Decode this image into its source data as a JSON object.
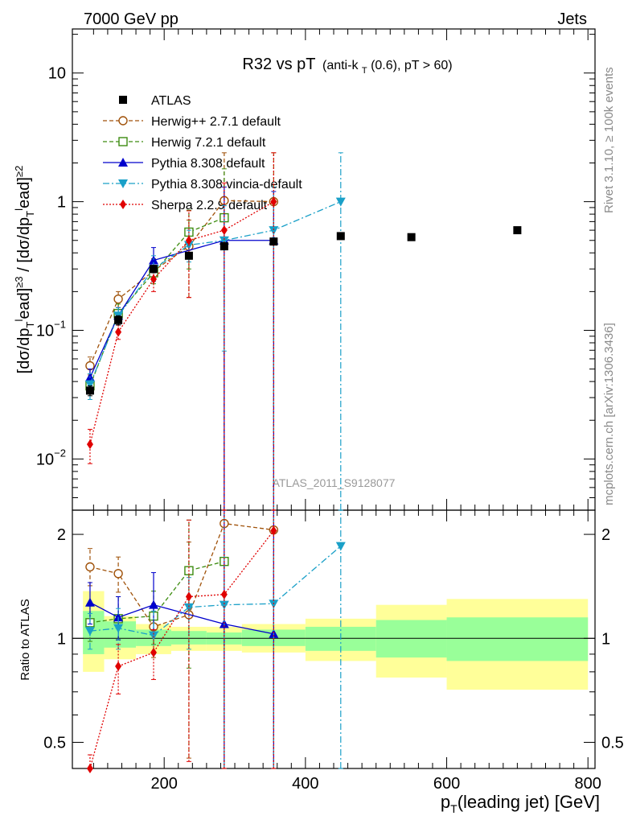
{
  "header": {
    "left": "7000 GeV pp",
    "right": "Jets"
  },
  "side_text": {
    "top": "Rivet 3.1.10, ≥ 100k events",
    "bottom": "mcplots.cern.ch [arXiv:1306.3436]"
  },
  "watermark": "ATLAS_2011_S9128077",
  "colors": {
    "atlas": "#000000",
    "herwigpp": "#a0520a",
    "herwig7": "#3d8c10",
    "pythia": "#0000cc",
    "vincia": "#1aa0c8",
    "sherpa": "#e00000",
    "band_yellow": "#ffff99",
    "band_green": "#99ff99"
  },
  "chart_data": [
    {
      "type": "line",
      "title": "R32 vs pT",
      "title_sub": "(anti-k",
      "title_sub_idx": "T",
      "title_sub_rest": "(0.6), pT > 60)",
      "xlim": [
        70,
        810
      ],
      "ylim": [
        0.004,
        22
      ],
      "ylog": true,
      "ylabel": "[dσ/dp",
      "yticks": [
        {
          "value": 0.01,
          "label": "10",
          "exp": "−2"
        },
        {
          "value": 0.1,
          "label": "10",
          "exp": "−1"
        },
        {
          "value": 1,
          "label": "1",
          "exp": ""
        },
        {
          "value": 10,
          "label": "10",
          "exp": ""
        }
      ],
      "legend_position": "top-left",
      "series": [
        {
          "name": "ATLAS",
          "key": "atlas",
          "marker": "square-filled",
          "dash": "none",
          "no_line": true,
          "x": [
            95,
            135,
            185,
            235,
            285,
            355,
            450,
            550,
            700
          ],
          "y": [
            0.034,
            0.12,
            0.3,
            0.38,
            0.45,
            0.49,
            0.54,
            0.53,
            0.6
          ],
          "err_lo": [
            0.031,
            0.11,
            0.28,
            0.36,
            0.43,
            0.47,
            0.52,
            0.51,
            0.58
          ],
          "err_hi": [
            0.037,
            0.13,
            0.32,
            0.4,
            0.47,
            0.51,
            0.56,
            0.55,
            0.62
          ]
        },
        {
          "name": "Herwig++ 2.7.1 default",
          "key": "herwigpp",
          "marker": "circle-open",
          "dash": "5,3",
          "x": [
            95,
            135,
            185,
            235,
            285,
            355
          ],
          "y": [
            0.053,
            0.175,
            0.29,
            0.45,
            1.02,
            1.0
          ],
          "err_lo": [
            0.045,
            0.15,
            0.24,
            0.18,
            0.0005,
            0.0005
          ],
          "err_hi": [
            0.062,
            0.2,
            0.36,
            0.72,
            2.4,
            2.4
          ]
        },
        {
          "name": "Herwig 7.2.1 default",
          "key": "herwig7",
          "marker": "square-open",
          "dash": "5,3",
          "x": [
            95,
            135,
            185,
            235,
            285
          ],
          "y": [
            0.037,
            0.135,
            0.28,
            0.58,
            0.75
          ],
          "err_lo": [
            0.032,
            0.11,
            0.23,
            0.3,
            0.0005
          ],
          "err_hi": [
            0.043,
            0.16,
            0.34,
            0.86,
            1.8
          ]
        },
        {
          "name": "Pythia 8.308 default",
          "key": "pythia",
          "marker": "triangle-up",
          "dash": "none",
          "x": [
            95,
            135,
            185,
            285,
            355
          ],
          "y": [
            0.043,
            0.13,
            0.35,
            0.5,
            0.5
          ],
          "err_lo": [
            0.037,
            0.11,
            0.28,
            0.0005,
            0.0005
          ],
          "err_hi": [
            0.05,
            0.15,
            0.44,
            1.3,
            1.2
          ]
        },
        {
          "name": "Pythia 8.308 vincia-default",
          "key": "vincia",
          "marker": "triangle-down",
          "dash": "8,3,2,3",
          "x": [
            95,
            135,
            185,
            235,
            285,
            355,
            450
          ],
          "y": [
            0.038,
            0.13,
            0.3,
            0.46,
            0.5,
            0.6,
            1.0
          ],
          "err_lo": [
            0.029,
            0.11,
            0.24,
            0.34,
            0.069,
            0.0005,
            0.0005
          ],
          "err_hi": [
            0.046,
            0.15,
            0.38,
            0.6,
            0.93,
            1.3,
            2.4
          ]
        },
        {
          "name": "Sherpa 2.2.9 default",
          "key": "sherpa",
          "marker": "diamond-filled",
          "dash": "2,2",
          "x": [
            95,
            135,
            185,
            235,
            285,
            355
          ],
          "y": [
            0.013,
            0.097,
            0.25,
            0.5,
            0.6,
            1.0
          ],
          "err_lo": [
            0.0092,
            0.085,
            0.2,
            0.18,
            0.0005,
            0.0005
          ],
          "err_hi": [
            0.017,
            0.11,
            0.3,
            0.85,
            1.4,
            2.4
          ]
        }
      ]
    },
    {
      "type": "line",
      "ylabel": "Ratio to ATLAS",
      "xlabel": "p",
      "xlabel_idx": "T",
      "xlabel_rest": "(leading jet) [GeV]",
      "xlim": [
        70,
        810
      ],
      "xticks": [
        200,
        400,
        600,
        800
      ],
      "ylim": [
        0.42,
        2.35
      ],
      "ylog": true,
      "yticks": [
        {
          "value": 0.5,
          "label": "0.5"
        },
        {
          "value": 1,
          "label": "1"
        },
        {
          "value": 2,
          "label": "2"
        }
      ],
      "bands": [
        {
          "x0": 85,
          "x1": 115,
          "yellow": [
            0.8,
            1.37
          ],
          "green": [
            0.9,
            1.2
          ]
        },
        {
          "x0": 115,
          "x1": 160,
          "yellow": [
            0.87,
            1.16
          ],
          "green": [
            0.94,
            1.12
          ]
        },
        {
          "x0": 160,
          "x1": 210,
          "yellow": [
            0.9,
            1.1
          ],
          "green": [
            0.95,
            1.06
          ]
        },
        {
          "x0": 210,
          "x1": 260,
          "yellow": [
            0.92,
            1.08
          ],
          "green": [
            0.96,
            1.05
          ]
        },
        {
          "x0": 260,
          "x1": 310,
          "yellow": [
            0.92,
            1.08
          ],
          "green": [
            0.96,
            1.04
          ]
        },
        {
          "x0": 310,
          "x1": 400,
          "yellow": [
            0.91,
            1.1
          ],
          "green": [
            0.95,
            1.06
          ]
        },
        {
          "x0": 400,
          "x1": 500,
          "yellow": [
            0.86,
            1.14
          ],
          "green": [
            0.92,
            1.08
          ]
        },
        {
          "x0": 500,
          "x1": 600,
          "yellow": [
            0.77,
            1.25
          ],
          "green": [
            0.88,
            1.13
          ]
        },
        {
          "x0": 600,
          "x1": 800,
          "yellow": [
            0.71,
            1.3
          ],
          "green": [
            0.86,
            1.15
          ]
        }
      ],
      "series": [
        {
          "key": "herwigpp",
          "marker": "circle-open",
          "dash": "5,3",
          "x": [
            95,
            135,
            185,
            235,
            285,
            355
          ],
          "y": [
            1.61,
            1.54,
            1.08,
            1.17,
            2.15,
            2.06
          ],
          "err_lo": [
            1.42,
            1.36,
            0.88,
            0.45,
            0.42,
            0.42
          ],
          "err_hi": [
            1.82,
            1.72,
            1.26,
            1.9,
            2.35,
            2.35
          ]
        },
        {
          "key": "herwig7",
          "marker": "square-open",
          "dash": "5,3",
          "x": [
            95,
            135,
            185,
            235,
            285
          ],
          "y": [
            1.11,
            1.14,
            1.16,
            1.57,
            1.67
          ],
          "err_lo": [
            0.98,
            0.99,
            0.96,
            0.82,
            0.42
          ],
          "err_hi": [
            1.24,
            1.32,
            1.37,
            2.2,
            2.35
          ]
        },
        {
          "key": "pythia",
          "marker": "triangle-up",
          "dash": "none",
          "x": [
            95,
            135,
            185,
            285,
            355
          ],
          "y": [
            1.27,
            1.15,
            1.25,
            1.1,
            1.03
          ],
          "err_lo": [
            1.1,
            0.99,
            1.03,
            0.42,
            0.42
          ],
          "err_hi": [
            1.45,
            1.32,
            1.55,
            2.35,
            2.35
          ]
        },
        {
          "key": "vincia",
          "marker": "triangle-down",
          "dash": "8,3,2,3",
          "x": [
            95,
            135,
            185,
            235,
            285,
            355,
            450
          ],
          "y": [
            1.05,
            1.07,
            1.02,
            1.23,
            1.25,
            1.26,
            1.85
          ],
          "err_lo": [
            0.93,
            0.93,
            0.9,
            0.93,
            0.42,
            0.42,
            0.42
          ],
          "err_hi": [
            1.18,
            1.22,
            1.2,
            1.5,
            2.35,
            2.35,
            2.35
          ]
        },
        {
          "key": "sherpa",
          "marker": "diamond-filled",
          "dash": "2,2",
          "x": [
            95,
            135,
            185,
            235,
            285,
            355
          ],
          "y": [
            0.38,
            0.83,
            0.91,
            1.32,
            1.34,
            2.05
          ],
          "err_lo": [
            0.3,
            0.69,
            0.76,
            0.44,
            0.42,
            0.42
          ],
          "err_hi": [
            0.46,
            0.96,
            1.06,
            2.2,
            2.35,
            2.35
          ]
        }
      ]
    }
  ]
}
